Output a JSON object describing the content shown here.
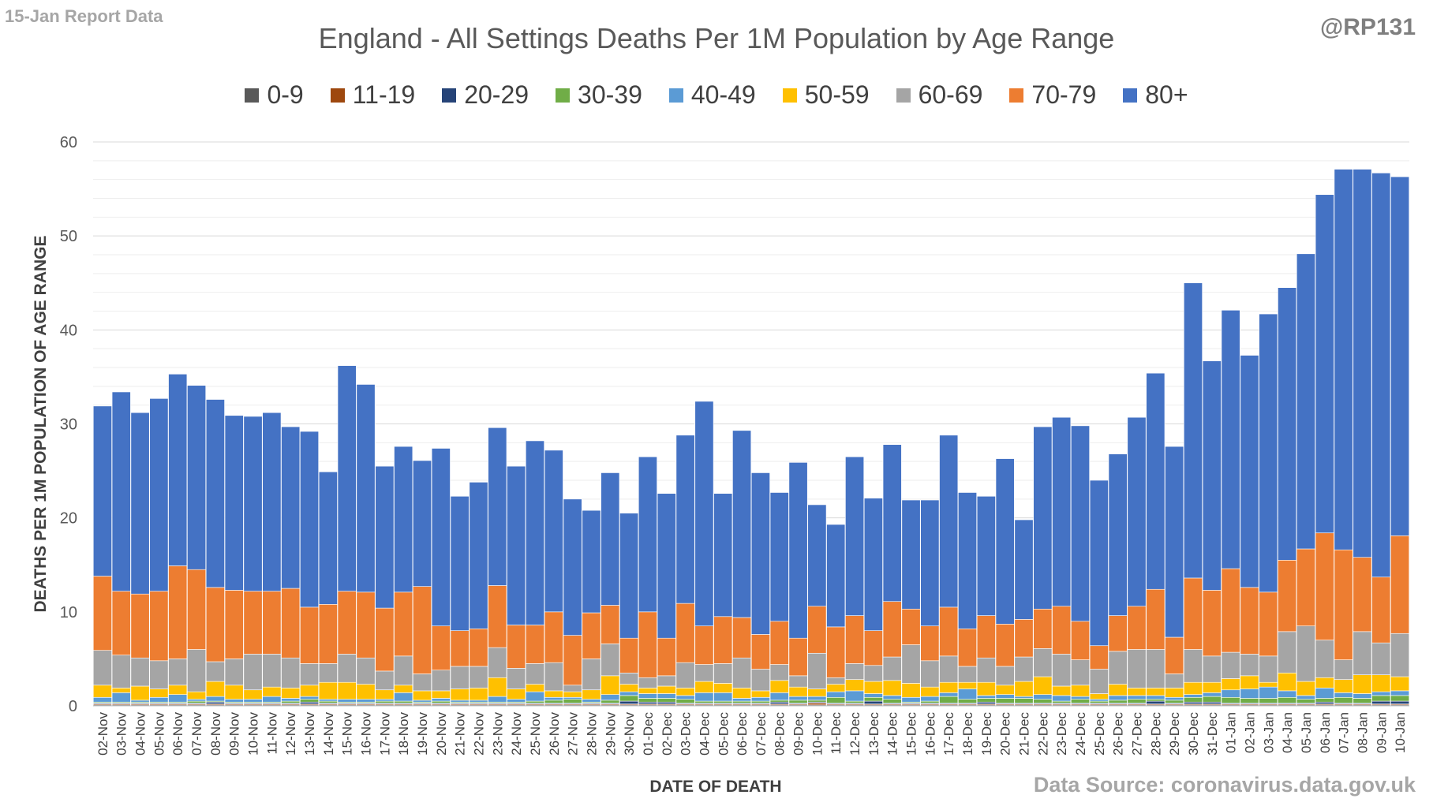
{
  "header": {
    "left_note": "15-Jan Report Data",
    "handle": "@RP131",
    "source": "Data Source: coronavirus.data.gov.uk"
  },
  "chart_data": {
    "type": "bar",
    "stacked": true,
    "title": "England - All Settings Deaths Per 1M Population by Age Range",
    "xlabel": "DATE OF DEATH",
    "ylabel": "DEATHS PER 1M POPULATION OF AGE RANGE",
    "ylim": [
      0,
      60
    ],
    "yticks": [
      0,
      10,
      20,
      30,
      40,
      50,
      60
    ],
    "grid": true,
    "legend_position": "top",
    "categories": [
      "02-Nov",
      "03-Nov",
      "04-Nov",
      "05-Nov",
      "06-Nov",
      "07-Nov",
      "08-Nov",
      "09-Nov",
      "10-Nov",
      "11-Nov",
      "12-Nov",
      "13-Nov",
      "14-Nov",
      "15-Nov",
      "16-Nov",
      "17-Nov",
      "18-Nov",
      "19-Nov",
      "20-Nov",
      "21-Nov",
      "22-Nov",
      "23-Nov",
      "24-Nov",
      "25-Nov",
      "26-Nov",
      "27-Nov",
      "28-Nov",
      "29-Nov",
      "30-Nov",
      "01-Dec",
      "02-Dec",
      "03-Dec",
      "04-Dec",
      "05-Dec",
      "06-Dec",
      "07-Dec",
      "08-Dec",
      "09-Dec",
      "10-Dec",
      "11-Dec",
      "12-Dec",
      "13-Dec",
      "14-Dec",
      "15-Dec",
      "16-Dec",
      "17-Dec",
      "18-Dec",
      "19-Dec",
      "20-Dec",
      "21-Dec",
      "22-Dec",
      "23-Dec",
      "24-Dec",
      "25-Dec",
      "26-Dec",
      "27-Dec",
      "28-Dec",
      "29-Dec",
      "30-Dec",
      "31-Dec",
      "01-Jan",
      "02-Jan",
      "03-Jan",
      "04-Jan",
      "05-Jan",
      "06-Jan",
      "07-Jan",
      "08-Jan",
      "09-Jan",
      "10-Jan"
    ],
    "series": [
      {
        "name": "0-9",
        "color": "#595959",
        "values": [
          0.1,
          0.1,
          0.1,
          0.1,
          0.1,
          0.1,
          0.1,
          0.1,
          0.1,
          0.1,
          0.1,
          0.1,
          0.1,
          0.1,
          0.1,
          0.1,
          0.1,
          0.1,
          0.1,
          0.1,
          0.1,
          0.1,
          0.1,
          0.1,
          0.1,
          0.1,
          0.1,
          0.1,
          0.1,
          0.1,
          0.1,
          0.1,
          0.1,
          0.1,
          0.1,
          0.1,
          0.1,
          0.1,
          0.1,
          0.1,
          0.1,
          0.1,
          0.1,
          0.1,
          0.1,
          0.1,
          0.1,
          0.1,
          0.1,
          0.1,
          0.1,
          0.1,
          0.1,
          0.1,
          0.1,
          0.1,
          0.1,
          0.1,
          0.1,
          0.1,
          0.1,
          0.1,
          0.1,
          0.1,
          0.1,
          0.1,
          0.1,
          0.1,
          0.1,
          0.1
        ]
      },
      {
        "name": "11-19",
        "color": "#9e480e",
        "values": [
          0.1,
          0.1,
          0.1,
          0.1,
          0.1,
          0.1,
          0.1,
          0.1,
          0.1,
          0.1,
          0.1,
          0.1,
          0.1,
          0.1,
          0.1,
          0.1,
          0.1,
          0.1,
          0.1,
          0.1,
          0.1,
          0.1,
          0.1,
          0.1,
          0.1,
          0.1,
          0.1,
          0.1,
          0.1,
          0.1,
          0.1,
          0.1,
          0.1,
          0.1,
          0.1,
          0.1,
          0.1,
          0.1,
          0.2,
          0.1,
          0.1,
          0.1,
          0.1,
          0.1,
          0.1,
          0.1,
          0.1,
          0.1,
          0.1,
          0.1,
          0.1,
          0.1,
          0.1,
          0.1,
          0.1,
          0.1,
          0.1,
          0.1,
          0.1,
          0.1,
          0.1,
          0.1,
          0.1,
          0.1,
          0.1,
          0.1,
          0.1,
          0.1,
          0.1,
          0.1
        ]
      },
      {
        "name": "20-29",
        "color": "#264478",
        "values": [
          0.1,
          0.1,
          0.1,
          0.1,
          0.1,
          0.1,
          0.2,
          0.1,
          0.1,
          0.1,
          0.1,
          0.2,
          0.1,
          0.1,
          0.1,
          0.1,
          0.1,
          0.1,
          0.1,
          0.1,
          0.1,
          0.1,
          0.1,
          0.1,
          0.1,
          0.1,
          0.1,
          0.1,
          0.3,
          0.2,
          0.2,
          0.1,
          0.1,
          0.1,
          0.1,
          0.1,
          0.2,
          0.1,
          0.1,
          0.1,
          0.1,
          0.3,
          0.1,
          0.1,
          0.1,
          0.1,
          0.1,
          0.2,
          0.1,
          0.1,
          0.1,
          0.1,
          0.1,
          0.1,
          0.1,
          0.1,
          0.3,
          0.1,
          0.2,
          0.2,
          0.1,
          0.1,
          0.1,
          0.1,
          0.1,
          0.2,
          0.1,
          0.1,
          0.3,
          0.3
        ]
      },
      {
        "name": "30-39",
        "color": "#70ad47",
        "values": [
          0.1,
          0.1,
          0.1,
          0.1,
          0.1,
          0.2,
          0.1,
          0.1,
          0.1,
          0.1,
          0.2,
          0.3,
          0.2,
          0.1,
          0.1,
          0.2,
          0.2,
          0.1,
          0.2,
          0.1,
          0.1,
          0.1,
          0.1,
          0.2,
          0.3,
          0.4,
          0.1,
          0.3,
          0.6,
          0.4,
          0.4,
          0.4,
          0.2,
          0.2,
          0.2,
          0.2,
          0.2,
          0.3,
          0.2,
          0.6,
          0.2,
          0.4,
          0.4,
          0.1,
          0.2,
          0.7,
          0.4,
          0.4,
          0.5,
          0.5,
          0.4,
          0.2,
          0.4,
          0.2,
          0.3,
          0.4,
          0.2,
          0.3,
          0.5,
          0.6,
          0.6,
          0.5,
          0.5,
          0.6,
          0.4,
          0.4,
          0.6,
          0.5,
          0.6,
          0.6
        ]
      },
      {
        "name": "40-49",
        "color": "#5b9bd5",
        "values": [
          0.5,
          1.0,
          0.2,
          0.5,
          0.8,
          0.2,
          0.5,
          0.3,
          0.3,
          0.6,
          0.3,
          0.3,
          0.2,
          0.3,
          0.3,
          0.2,
          0.9,
          0.2,
          0.3,
          0.2,
          0.2,
          0.6,
          0.3,
          1.0,
          0.3,
          0.2,
          0.3,
          0.6,
          0.4,
          0.5,
          0.5,
          0.4,
          0.9,
          0.9,
          0.3,
          0.4,
          0.8,
          0.4,
          0.4,
          0.6,
          1.1,
          0.4,
          0.4,
          0.5,
          0.5,
          0.4,
          1.1,
          0.3,
          0.4,
          0.2,
          0.5,
          0.6,
          0.3,
          0.2,
          0.5,
          0.4,
          0.4,
          0.3,
          0.3,
          0.4,
          0.8,
          1.0,
          1.2,
          0.7,
          0.4,
          1.1,
          0.5,
          0.5,
          0.4,
          0.5
        ]
      },
      {
        "name": "50-59",
        "color": "#ffc000",
        "values": [
          1.3,
          0.5,
          1.5,
          0.9,
          1.0,
          0.8,
          1.6,
          1.5,
          1.0,
          1.0,
          1.1,
          1.2,
          1.8,
          1.8,
          1.6,
          1.0,
          0.8,
          1.0,
          0.8,
          1.2,
          1.3,
          2.0,
          1.1,
          0.8,
          0.7,
          0.6,
          1.0,
          2.0,
          0.8,
          0.6,
          0.8,
          0.8,
          1.2,
          1.0,
          1.1,
          0.7,
          1.3,
          1.0,
          0.8,
          0.8,
          1.2,
          1.3,
          1.6,
          1.5,
          1.0,
          1.1,
          0.7,
          1.4,
          1.0,
          1.6,
          1.9,
          1.0,
          1.2,
          0.6,
          1.2,
          0.8,
          0.8,
          1.0,
          1.3,
          1.1,
          1.2,
          1.4,
          0.5,
          1.9,
          1.5,
          1.1,
          1.4,
          2.0,
          1.8,
          1.5
        ]
      },
      {
        "name": "60-69",
        "color": "#a5a5a5",
        "values": [
          3.7,
          3.5,
          3.0,
          3.0,
          2.8,
          4.5,
          2.1,
          2.8,
          3.8,
          3.5,
          3.2,
          2.3,
          2.0,
          3.0,
          2.8,
          2.0,
          3.1,
          1.8,
          2.2,
          2.4,
          2.3,
          3.2,
          2.2,
          2.2,
          3.0,
          0.7,
          3.3,
          3.4,
          1.2,
          1.1,
          1.1,
          2.7,
          1.8,
          2.1,
          3.2,
          2.3,
          1.7,
          1.2,
          3.8,
          0.7,
          1.7,
          1.7,
          2.5,
          4.1,
          2.8,
          2.8,
          1.7,
          2.6,
          2.0,
          2.6,
          3.0,
          3.4,
          2.7,
          2.6,
          3.5,
          4.1,
          4.1,
          1.5,
          3.5,
          2.8,
          2.8,
          2.3,
          2.8,
          4.4,
          5.9,
          4.0,
          2.1,
          4.6,
          3.4,
          4.6
        ]
      },
      {
        "name": "70-79",
        "color": "#ed7d31",
        "values": [
          7.9,
          6.8,
          6.8,
          7.4,
          9.9,
          8.5,
          7.9,
          7.3,
          6.7,
          6.7,
          7.4,
          6.0,
          6.3,
          6.7,
          7.0,
          6.7,
          6.8,
          9.3,
          4.7,
          3.8,
          4.0,
          6.6,
          4.6,
          4.1,
          5.4,
          5.3,
          4.9,
          4.1,
          3.7,
          7.0,
          4.0,
          6.3,
          4.1,
          5.0,
          4.3,
          3.7,
          4.6,
          4.0,
          5.0,
          5.4,
          5.1,
          3.7,
          5.9,
          3.8,
          3.7,
          5.2,
          4.0,
          4.5,
          4.5,
          4.0,
          4.2,
          5.1,
          4.1,
          2.5,
          3.8,
          4.6,
          6.4,
          3.9,
          7.6,
          7.0,
          8.9,
          7.1,
          6.8,
          7.6,
          8.2,
          11.4,
          11.7,
          7.9,
          7.0,
          10.4
        ]
      },
      {
        "name": "80+",
        "color": "#4472c4",
        "values": [
          18.1,
          21.2,
          19.3,
          20.5,
          20.4,
          19.6,
          20.0,
          18.6,
          18.6,
          19.0,
          17.2,
          18.7,
          14.1,
          24.0,
          22.1,
          15.1,
          15.5,
          13.4,
          18.9,
          14.3,
          15.6,
          16.8,
          16.9,
          19.6,
          17.2,
          14.5,
          10.9,
          14.1,
          13.3,
          16.5,
          15.4,
          17.9,
          23.9,
          13.1,
          19.9,
          17.2,
          13.7,
          18.7,
          10.8,
          10.9,
          16.9,
          14.1,
          16.7,
          11.6,
          13.4,
          18.3,
          14.5,
          12.7,
          17.6,
          10.6,
          19.4,
          20.1,
          20.8,
          17.6,
          17.2,
          20.1,
          23.0,
          20.3,
          31.4,
          24.4,
          27.5,
          24.7,
          29.6,
          29.0,
          31.4,
          36.0,
          40.5,
          41.3,
          43.0,
          38.2
        ]
      }
    ]
  }
}
